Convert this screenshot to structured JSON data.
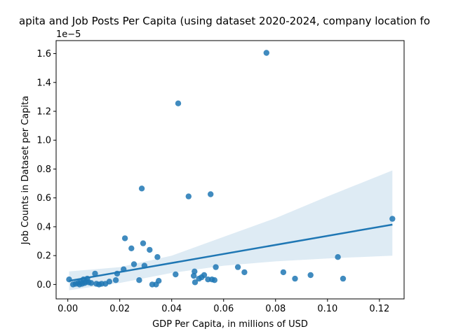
{
  "chart_data": {
    "type": "scatter",
    "title": "apita and Job Posts Per Capita (using dataset 2020-2024, company location fo",
    "xlabel": "GDP Per Capita, in millions of USD",
    "ylabel": "Job Counts in Dataset per Capita",
    "y_offset_label": "1e−5",
    "xlim": [
      -0.0045,
      0.1295
    ],
    "ylim": [
      -0.1,
      1.69
    ],
    "x_ticks": [
      0.0,
      0.02,
      0.04,
      0.06,
      0.08,
      0.1,
      0.12
    ],
    "x_tick_labels": [
      "0.00",
      "0.02",
      "0.04",
      "0.06",
      "0.08",
      "0.10",
      "0.12"
    ],
    "y_ticks": [
      0.0,
      0.2,
      0.4,
      0.6,
      0.8,
      1.0,
      1.2,
      1.4,
      1.6
    ],
    "y_tick_labels": [
      "0.0",
      "0.2",
      "0.4",
      "0.6",
      "0.8",
      "1.0",
      "1.2",
      "1.4",
      "1.6"
    ],
    "grid": false,
    "legend": false,
    "colors": {
      "points": "#1f77b4",
      "fit_line": "#1f77b4",
      "confidence_band": "#1f77b4"
    },
    "series": [
      {
        "values": [
          {
            "x": 0.0005,
            "y": 0.035
          },
          {
            "x": 0.002,
            "y": 0.0
          },
          {
            "x": 0.003,
            "y": 0.005
          },
          {
            "x": 0.004,
            "y": 0.01
          },
          {
            "x": 0.0045,
            "y": 0.0
          },
          {
            "x": 0.005,
            "y": 0.02
          },
          {
            "x": 0.0055,
            "y": 0.005
          },
          {
            "x": 0.006,
            "y": 0.035
          },
          {
            "x": 0.0065,
            "y": 0.01
          },
          {
            "x": 0.007,
            "y": 0.02
          },
          {
            "x": 0.0075,
            "y": 0.04
          },
          {
            "x": 0.008,
            "y": 0.015
          },
          {
            "x": 0.009,
            "y": 0.01
          },
          {
            "x": 0.0105,
            "y": 0.075
          },
          {
            "x": 0.011,
            "y": 0.005
          },
          {
            "x": 0.012,
            "y": 0.0
          },
          {
            "x": 0.013,
            "y": 0.005
          },
          {
            "x": 0.0145,
            "y": 0.005
          },
          {
            "x": 0.016,
            "y": 0.02
          },
          {
            "x": 0.0185,
            "y": 0.03
          },
          {
            "x": 0.019,
            "y": 0.075
          },
          {
            "x": 0.0215,
            "y": 0.105
          },
          {
            "x": 0.022,
            "y": 0.32
          },
          {
            "x": 0.0245,
            "y": 0.25
          },
          {
            "x": 0.0255,
            "y": 0.14
          },
          {
            "x": 0.0275,
            "y": 0.03
          },
          {
            "x": 0.0285,
            "y": 0.665
          },
          {
            "x": 0.029,
            "y": 0.285
          },
          {
            "x": 0.0295,
            "y": 0.13
          },
          {
            "x": 0.0315,
            "y": 0.24
          },
          {
            "x": 0.0325,
            "y": 0.0
          },
          {
            "x": 0.034,
            "y": 0.0
          },
          {
            "x": 0.0345,
            "y": 0.19
          },
          {
            "x": 0.035,
            "y": 0.025
          },
          {
            "x": 0.0415,
            "y": 0.07
          },
          {
            "x": 0.0425,
            "y": 1.255
          },
          {
            "x": 0.0465,
            "y": 0.61
          },
          {
            "x": 0.0485,
            "y": 0.06
          },
          {
            "x": 0.0488,
            "y": 0.09
          },
          {
            "x": 0.049,
            "y": 0.015
          },
          {
            "x": 0.0505,
            "y": 0.04
          },
          {
            "x": 0.0515,
            "y": 0.05
          },
          {
            "x": 0.0525,
            "y": 0.065
          },
          {
            "x": 0.054,
            "y": 0.035
          },
          {
            "x": 0.055,
            "y": 0.625
          },
          {
            "x": 0.0555,
            "y": 0.035
          },
          {
            "x": 0.0565,
            "y": 0.03
          },
          {
            "x": 0.057,
            "y": 0.12
          },
          {
            "x": 0.0655,
            "y": 0.12
          },
          {
            "x": 0.068,
            "y": 0.085
          },
          {
            "x": 0.0765,
            "y": 1.605
          },
          {
            "x": 0.083,
            "y": 0.085
          },
          {
            "x": 0.0875,
            "y": 0.04
          },
          {
            "x": 0.0935,
            "y": 0.065
          },
          {
            "x": 0.104,
            "y": 0.19
          },
          {
            "x": 0.106,
            "y": 0.04
          },
          {
            "x": 0.125,
            "y": 0.455
          }
        ]
      }
    ],
    "regression": {
      "line": [
        {
          "x": 0.0005,
          "y": 0.025
        },
        {
          "x": 0.125,
          "y": 0.415
        }
      ],
      "confidence_band_upper": [
        {
          "x": 0.0005,
          "y": 0.09
        },
        {
          "x": 0.02,
          "y": 0.12
        },
        {
          "x": 0.04,
          "y": 0.2
        },
        {
          "x": 0.06,
          "y": 0.33
        },
        {
          "x": 0.08,
          "y": 0.46
        },
        {
          "x": 0.1,
          "y": 0.61
        },
        {
          "x": 0.125,
          "y": 0.79
        }
      ],
      "confidence_band_lower": [
        {
          "x": 0.0005,
          "y": -0.04
        },
        {
          "x": 0.02,
          "y": 0.01
        },
        {
          "x": 0.04,
          "y": 0.08
        },
        {
          "x": 0.06,
          "y": 0.13
        },
        {
          "x": 0.08,
          "y": 0.16
        },
        {
          "x": 0.1,
          "y": 0.18
        },
        {
          "x": 0.125,
          "y": 0.2
        }
      ]
    }
  }
}
